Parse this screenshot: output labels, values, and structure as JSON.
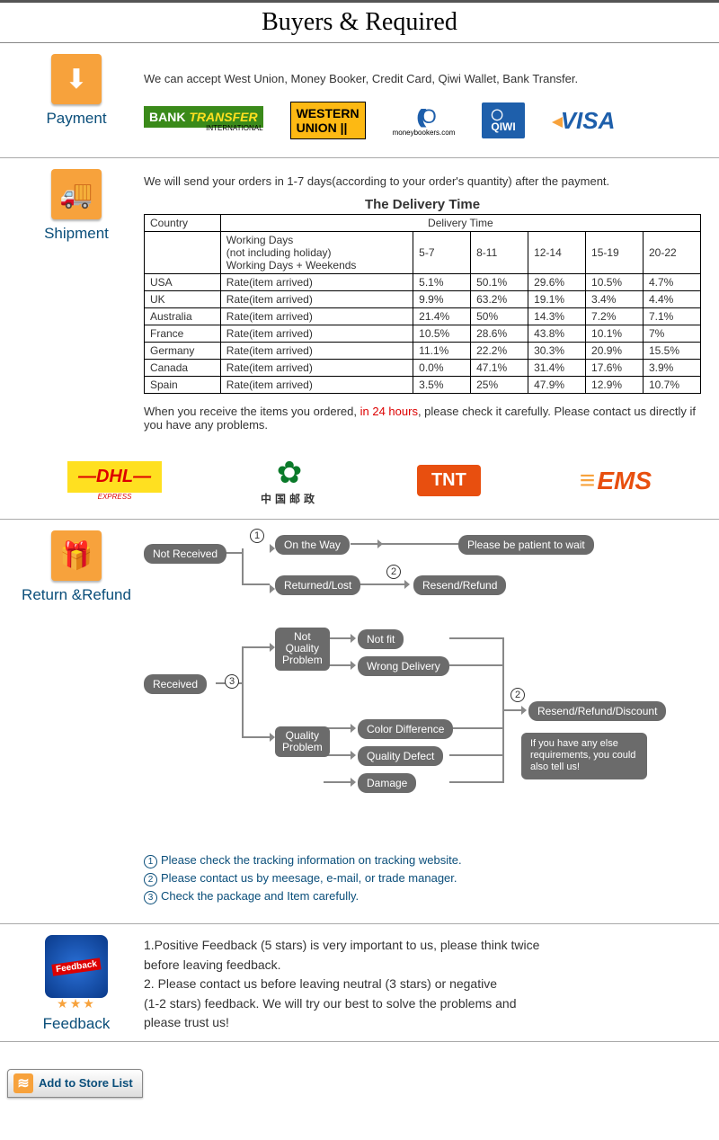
{
  "banner": "Buyers & Required",
  "colors": {
    "accent": "#f7a23c",
    "link": "#0a4e7a",
    "node": "#6b6b6b",
    "red": "#d00"
  },
  "payment": {
    "label": "Payment",
    "text": "We can accept West Union, Money Booker, Credit Card, Qiwi Wallet, Bank Transfer.",
    "logos": {
      "bank_transfer": {
        "l1": "BANK",
        "l2": "TRANSFER",
        "sub": "INTERNATIONAL"
      },
      "western_union": {
        "l1": "WESTERN",
        "l2": "UNION"
      },
      "moneybookers": {
        "arcs": "((((O",
        "sub": "moneybookers.com"
      },
      "qiwi": "QIWI",
      "visa": "VISA"
    }
  },
  "shipment": {
    "label": "Shipment",
    "intro": "We will send your orders in 1-7 days(according to your order's quantity) after the payment.",
    "table_title": "The Delivery Time",
    "header": {
      "country": "Country",
      "delivery_time": "Delivery Time",
      "working_days_l1": "Working Days",
      "working_days_l2": "(not including holiday)",
      "working_days_l3": "Working Days + Weekends",
      "periods": [
        "5-7",
        "8-11",
        "12-14",
        "15-19",
        "20-22"
      ]
    },
    "rate_label": "Rate(item arrived)",
    "rows": [
      {
        "country": "USA",
        "rates": [
          "5.1%",
          "50.1%",
          "29.6%",
          "10.5%",
          "4.7%"
        ]
      },
      {
        "country": "UK",
        "rates": [
          "9.9%",
          "63.2%",
          "19.1%",
          "3.4%",
          "4.4%"
        ]
      },
      {
        "country": "Australia",
        "rates": [
          "21.4%",
          "50%",
          "14.3%",
          "7.2%",
          "7.1%"
        ]
      },
      {
        "country": "France",
        "rates": [
          "10.5%",
          "28.6%",
          "43.8%",
          "10.1%",
          "7%"
        ]
      },
      {
        "country": "Germany",
        "rates": [
          "11.1%",
          "22.2%",
          "30.3%",
          "20.9%",
          "15.5%"
        ]
      },
      {
        "country": "Canada",
        "rates": [
          "0.0%",
          "47.1%",
          "31.4%",
          "17.6%",
          "3.9%"
        ]
      },
      {
        "country": "Spain",
        "rates": [
          "3.5%",
          "25%",
          "47.9%",
          "12.9%",
          "10.7%"
        ]
      }
    ],
    "note_pre": "When you receive the items you ordered, ",
    "note_red": "in 24 hours",
    "note_post": ", please check it carefully. Please contact us directly if you have any problems.",
    "carriers": {
      "dhl": "—DHL—",
      "dhl_sub": "EXPRESS",
      "cnpost": "中国邮政",
      "tnt": "TNT",
      "ems": "EMS"
    }
  },
  "return": {
    "label": "Return &Refund",
    "nodes": {
      "not_received": "Not Received",
      "on_the_way": "On the Way",
      "please_patient": "Please be patient to wait",
      "returned_lost": "Returned/Lost",
      "resend_refund": "Resend/Refund",
      "received": "Received",
      "not_quality": "Not\nQuality\nProblem",
      "quality": "Quality\nProblem",
      "not_fit": "Not fit",
      "wrong_delivery": "Wrong Delivery",
      "color_diff": "Color Difference",
      "quality_defect": "Quality Defect",
      "damage": "Damage",
      "resend_refund_discount": "Resend/Refund/Discount",
      "bubble": "If you have any else requirements, you could also tell us!"
    },
    "nums": {
      "n1": "1",
      "n2": "2",
      "n3": "3"
    },
    "notes": [
      "Please check the tracking information on tracking website.",
      "Please contact us by meesage, e-mail, or trade manager.",
      "Check the package and Item carefully."
    ]
  },
  "feedback": {
    "label": "Feedback",
    "badge_text": "Feedback",
    "stars": "★★★",
    "lines": [
      "1.Positive Feedback (5 stars) is very important to us, please think twice",
      " before leaving feedback.",
      "2. Please contact us before leaving neutral (3 stars) or negative",
      "(1-2 stars) feedback. We will try our best to solve the problems and",
      " please trust us!"
    ]
  },
  "add_store": "Add to Store List"
}
